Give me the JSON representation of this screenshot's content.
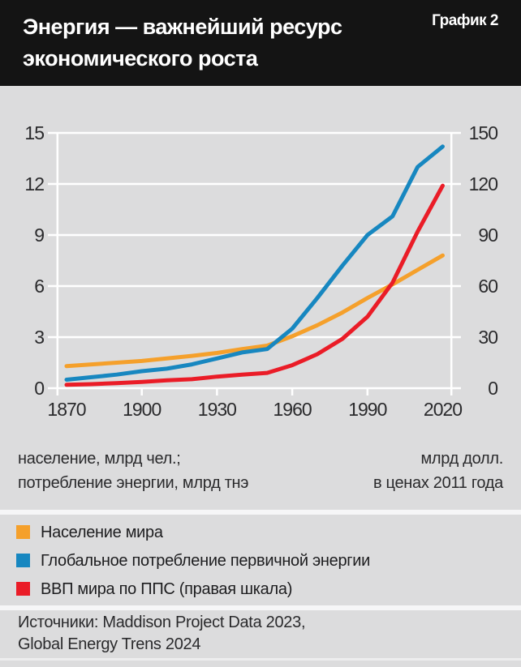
{
  "header": {
    "title_line1": "Энергия — важнейший ресурс",
    "title_line2": "экономического роста",
    "badge": "График 2"
  },
  "footnotes": {
    "left_line1": "население, млрд чел.;",
    "left_line2": "потребление энергии, млрд тнэ",
    "right_line1": "млрд долл.",
    "right_line2": "в ценах 2011 года"
  },
  "sources": {
    "line1": "Источники: Maddison Project Data 2023,",
    "line2": "Global Energy Trens 2024"
  },
  "colors": {
    "background": "#dcdcdd",
    "header_bg": "#141414",
    "grid": "#ffffff",
    "text": "#2a2a2c",
    "orange": "#f5a02b",
    "blue": "#1787c0",
    "red": "#ea1c27"
  },
  "chart_data": {
    "type": "line",
    "title": "Энергия — важнейший ресурс экономического роста",
    "x": [
      1870,
      1880,
      1890,
      1900,
      1910,
      1920,
      1930,
      1940,
      1950,
      1960,
      1970,
      1980,
      1990,
      2000,
      2010,
      2020
    ],
    "x_ticks": [
      1870,
      1900,
      1930,
      1960,
      1990,
      2020
    ],
    "series": [
      {
        "name": "Население мира",
        "axis": "left",
        "color": "#f5a02b",
        "values": [
          1.3,
          1.4,
          1.5,
          1.6,
          1.75,
          1.9,
          2.07,
          2.3,
          2.5,
          3.05,
          3.7,
          4.45,
          5.3,
          6.1,
          6.95,
          7.8
        ]
      },
      {
        "name": "Глобальное потребление первичной энергии",
        "axis": "left",
        "color": "#1787c0",
        "values": [
          0.5,
          0.65,
          0.8,
          1.0,
          1.15,
          1.4,
          1.75,
          2.1,
          2.3,
          3.5,
          5.3,
          7.2,
          9.0,
          10.1,
          13.0,
          14.2
        ]
      },
      {
        "name": "ВВП мира по ППС (правая шкала)",
        "axis": "right",
        "color": "#ea1c27",
        "values": [
          2,
          2.4,
          3,
          3.7,
          4.6,
          5.3,
          6.8,
          8,
          9,
          13.5,
          20,
          29,
          42,
          62,
          92,
          119
        ]
      }
    ],
    "left_axis": {
      "ticks": [
        0,
        3,
        6,
        9,
        12,
        15
      ],
      "range": [
        0,
        15
      ],
      "label": "население, млрд чел.; потребление энергии, млрд тнэ"
    },
    "right_axis": {
      "ticks": [
        0,
        30,
        60,
        90,
        120,
        150
      ],
      "range": [
        0,
        150
      ],
      "label": "млрд долл. в ценах 2011 года"
    },
    "grid": true,
    "legend_position": "bottom"
  }
}
